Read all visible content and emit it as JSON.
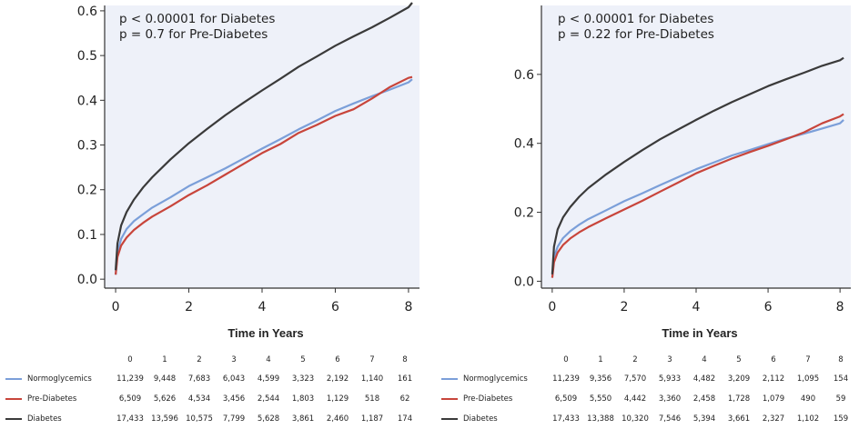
{
  "chart_data": [
    {
      "type": "line",
      "annotations": [
        "p < 0.00001 for Diabetes",
        "p = 0.7 for Pre-Diabetes"
      ],
      "xlabel": "Time in Years",
      "ylabel": "",
      "xlim": [
        -0.3,
        8.3
      ],
      "ylim": [
        -0.02,
        0.612
      ],
      "x_ticks": [
        0,
        2,
        4,
        6,
        8
      ],
      "y_ticks": [
        0.0,
        0.1,
        0.2,
        0.3,
        0.4,
        0.5,
        0.6
      ],
      "y_tick_labels": [
        "0.0",
        "0.1",
        "0.2",
        "0.3",
        "0.4",
        "0.5",
        "0.6"
      ],
      "series": [
        {
          "name": "Normoglycemics",
          "color": "#7b9fd9",
          "x": [
            0,
            0.05,
            0.15,
            0.3,
            0.5,
            0.75,
            1,
            1.5,
            2,
            2.5,
            3,
            3.5,
            4,
            4.5,
            5,
            5.5,
            6,
            6.5,
            7,
            7.5,
            8,
            8.1
          ],
          "y": [
            0.01,
            0.06,
            0.09,
            0.112,
            0.13,
            0.145,
            0.16,
            0.183,
            0.208,
            0.228,
            0.248,
            0.27,
            0.292,
            0.313,
            0.335,
            0.355,
            0.376,
            0.393,
            0.409,
            0.424,
            0.44,
            0.447
          ]
        },
        {
          "name": "Pre-Diabetes",
          "color": "#c8453b",
          "x": [
            0,
            0.05,
            0.15,
            0.3,
            0.5,
            0.75,
            1,
            1.5,
            2,
            2.5,
            3,
            3.5,
            4,
            4.5,
            5,
            5.5,
            6,
            6.5,
            7,
            7.5,
            8,
            8.1
          ],
          "y": [
            0.01,
            0.05,
            0.075,
            0.093,
            0.11,
            0.126,
            0.14,
            0.163,
            0.188,
            0.21,
            0.234,
            0.258,
            0.282,
            0.302,
            0.327,
            0.345,
            0.365,
            0.38,
            0.404,
            0.43,
            0.45,
            0.452
          ]
        },
        {
          "name": "Diabetes",
          "color": "#3a3a3a",
          "x": [
            0,
            0.05,
            0.15,
            0.3,
            0.5,
            0.75,
            1,
            1.5,
            2,
            2.5,
            3,
            3.5,
            4,
            4.5,
            5,
            5.5,
            6,
            6.5,
            7,
            7.5,
            8,
            8.1
          ],
          "y": [
            0.02,
            0.08,
            0.12,
            0.15,
            0.178,
            0.205,
            0.228,
            0.268,
            0.304,
            0.336,
            0.367,
            0.395,
            0.422,
            0.448,
            0.475,
            0.498,
            0.522,
            0.543,
            0.563,
            0.585,
            0.608,
            0.618
          ]
        }
      ],
      "risk_table": {
        "times": [
          "0",
          "1",
          "2",
          "3",
          "4",
          "5",
          "6",
          "7",
          "8"
        ],
        "rows": [
          {
            "name": "Normoglycemics",
            "color": "#7b9fd9",
            "counts": [
              "11,239",
              "9,448",
              "7,683",
              "6,043",
              "4,599",
              "3,323",
              "2,192",
              "1,140",
              "161"
            ]
          },
          {
            "name": "Pre-Diabetes",
            "color": "#c8453b",
            "counts": [
              "6,509",
              "5,626",
              "4,534",
              "3,456",
              "2,544",
              "1,803",
              "1,129",
              "518",
              "62"
            ]
          },
          {
            "name": "Diabetes",
            "color": "#3a3a3a",
            "counts": [
              "17,433",
              "13,596",
              "10,575",
              "7,799",
              "5,628",
              "3,861",
              "2,460",
              "1,187",
              "174"
            ]
          }
        ]
      }
    },
    {
      "type": "line",
      "annotations": [
        "p < 0.00001 for Diabetes",
        "p = 0.22 for Pre-Diabetes"
      ],
      "xlabel": "Time in Years",
      "ylabel": "",
      "xlim": [
        -0.3,
        8.3
      ],
      "ylim": [
        -0.02,
        0.8
      ],
      "x_ticks": [
        0,
        2,
        4,
        6,
        8
      ],
      "y_ticks": [
        0.0,
        0.2,
        0.4,
        0.6
      ],
      "y_tick_labels": [
        "0.0",
        "0.2",
        "0.4",
        "0.6"
      ],
      "series": [
        {
          "name": "Normoglycemics",
          "color": "#7b9fd9",
          "x": [
            0,
            0.05,
            0.15,
            0.3,
            0.5,
            0.75,
            1,
            1.5,
            2,
            2.5,
            3,
            3.5,
            4,
            4.5,
            5,
            5.5,
            6,
            6.5,
            7,
            7.5,
            8,
            8.1
          ],
          "y": [
            0.01,
            0.07,
            0.1,
            0.125,
            0.145,
            0.164,
            0.18,
            0.206,
            0.232,
            0.255,
            0.279,
            0.302,
            0.325,
            0.345,
            0.365,
            0.381,
            0.398,
            0.414,
            0.428,
            0.443,
            0.458,
            0.468
          ]
        },
        {
          "name": "Pre-Diabetes",
          "color": "#c8453b",
          "x": [
            0,
            0.05,
            0.15,
            0.3,
            0.5,
            0.75,
            1,
            1.5,
            2,
            2.5,
            3,
            3.5,
            4,
            4.5,
            5,
            5.5,
            6,
            6.5,
            7,
            7.5,
            8,
            8.1
          ],
          "y": [
            0.01,
            0.055,
            0.083,
            0.105,
            0.124,
            0.142,
            0.157,
            0.183,
            0.208,
            0.233,
            0.26,
            0.286,
            0.313,
            0.335,
            0.356,
            0.375,
            0.393,
            0.412,
            0.432,
            0.458,
            0.478,
            0.485
          ]
        },
        {
          "name": "Diabetes",
          "color": "#3a3a3a",
          "x": [
            0,
            0.05,
            0.15,
            0.3,
            0.5,
            0.75,
            1,
            1.5,
            2,
            2.5,
            3,
            3.5,
            4,
            4.5,
            5,
            5.5,
            6,
            6.5,
            7,
            7.5,
            8,
            8.1
          ],
          "y": [
            0.02,
            0.1,
            0.15,
            0.185,
            0.215,
            0.245,
            0.27,
            0.31,
            0.346,
            0.38,
            0.412,
            0.44,
            0.468,
            0.495,
            0.52,
            0.543,
            0.566,
            0.586,
            0.605,
            0.625,
            0.641,
            0.648
          ]
        }
      ],
      "risk_table": {
        "times": [
          "0",
          "1",
          "2",
          "3",
          "4",
          "5",
          "6",
          "7",
          "8"
        ],
        "rows": [
          {
            "name": "Normoglycemics",
            "color": "#7b9fd9",
            "counts": [
              "11,239",
              "9,356",
              "7,570",
              "5,933",
              "4,482",
              "3,209",
              "2,112",
              "1,095",
              "154"
            ]
          },
          {
            "name": "Pre-Diabetes",
            "color": "#c8453b",
            "counts": [
              "6,509",
              "5,550",
              "4,442",
              "3,360",
              "2,458",
              "1,728",
              "1,079",
              "490",
              "59"
            ]
          },
          {
            "name": "Diabetes",
            "color": "#3a3a3a",
            "counts": [
              "17,433",
              "13,388",
              "10,320",
              "7,546",
              "5,394",
              "3,661",
              "2,327",
              "1,102",
              "159"
            ]
          }
        ]
      }
    }
  ]
}
